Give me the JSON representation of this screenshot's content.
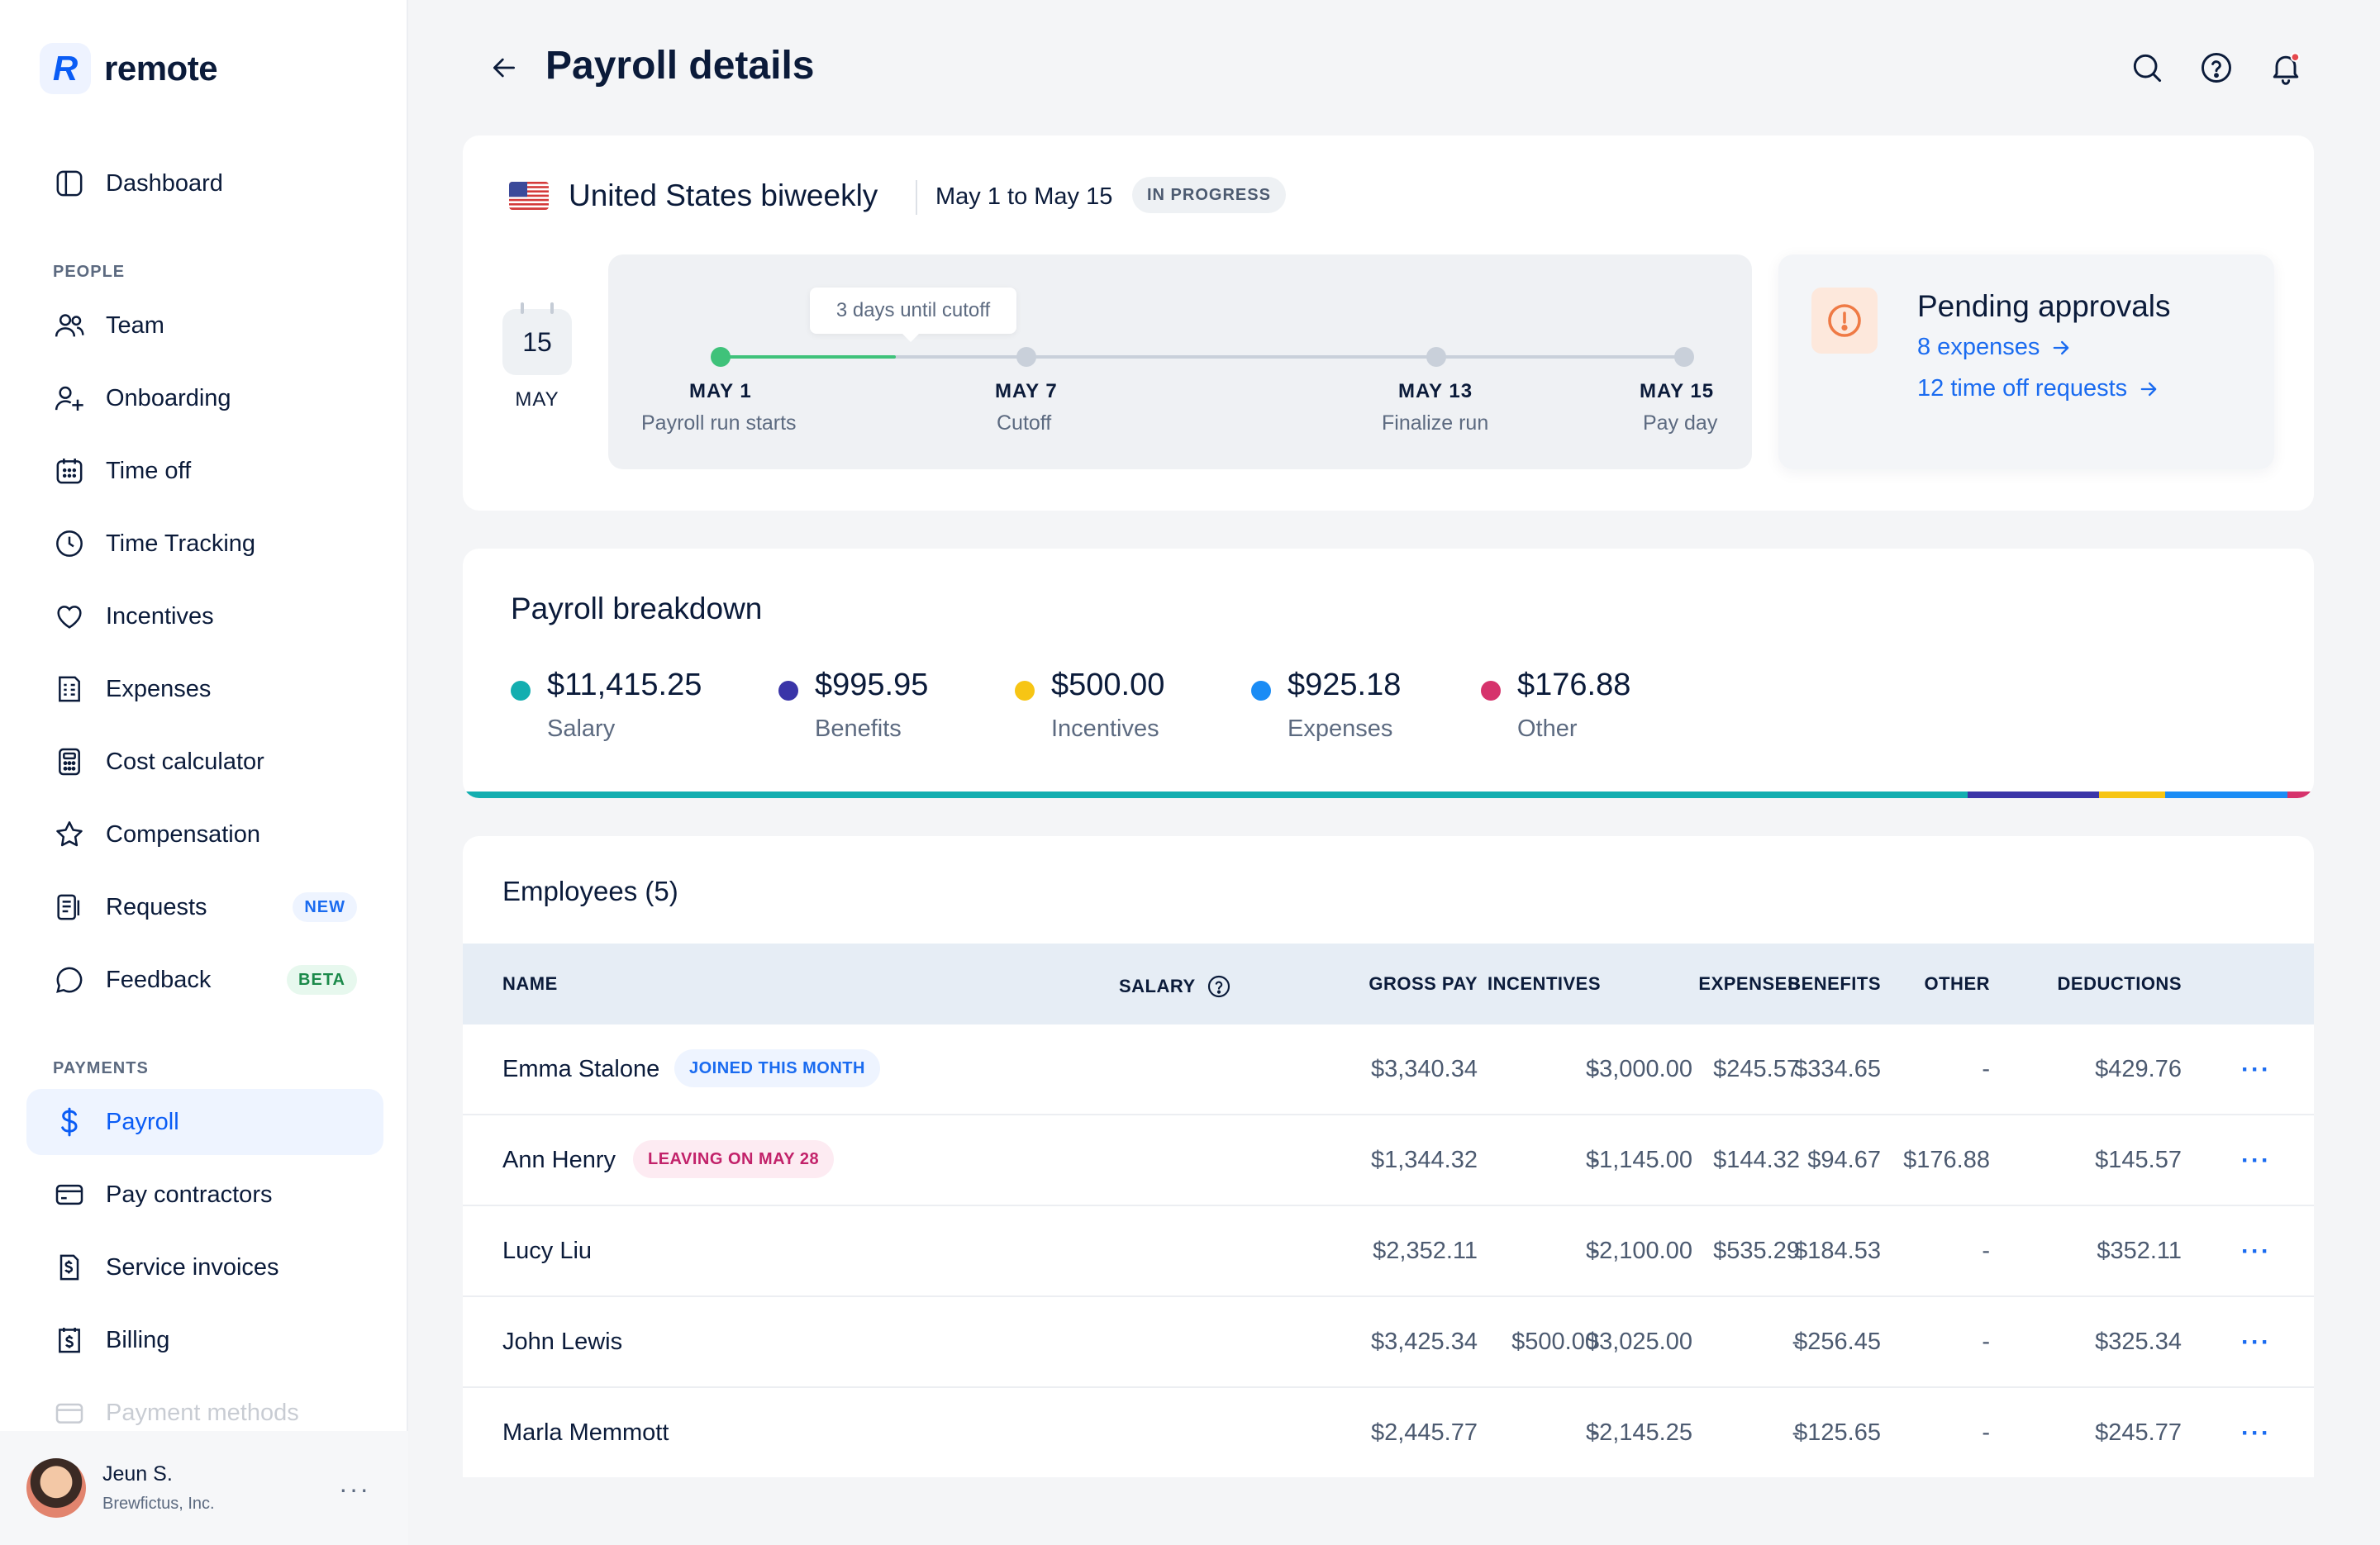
{
  "app": {
    "logo_text": "remote",
    "logo_letter": "R"
  },
  "sidebar": {
    "items": [
      {
        "label": "Dashboard",
        "icon": "dashboard-icon"
      },
      {
        "label": "Team",
        "icon": "team-icon"
      },
      {
        "label": "Onboarding",
        "icon": "onboarding-icon"
      },
      {
        "label": "Time off",
        "icon": "calendar-icon"
      },
      {
        "label": "Time Tracking",
        "icon": "clock-icon"
      },
      {
        "label": "Incentives",
        "icon": "heart-icon"
      },
      {
        "label": "Expenses",
        "icon": "receipt-icon"
      },
      {
        "label": "Cost calculator",
        "icon": "calculator-icon"
      },
      {
        "label": "Compensation",
        "icon": "star-icon"
      },
      {
        "label": "Requests",
        "icon": "requests-icon",
        "badge": "NEW"
      },
      {
        "label": "Feedback",
        "icon": "chat-icon",
        "badge": "BETA"
      },
      {
        "label": "Payroll",
        "icon": "dollar-icon"
      },
      {
        "label": "Pay contractors",
        "icon": "card-icon"
      },
      {
        "label": "Service invoices",
        "icon": "invoice-icon"
      },
      {
        "label": "Billing",
        "icon": "billing-icon"
      },
      {
        "label": "Payment methods",
        "icon": "payment-methods-icon"
      }
    ],
    "sections": {
      "people": "PEOPLE",
      "payments": "PAYMENTS"
    },
    "active_item": "Payroll",
    "user": {
      "name": "Jeun S.",
      "company": "Brewfictus, Inc.",
      "more": "···"
    }
  },
  "header": {
    "title": "Payroll details"
  },
  "schedule": {
    "title": "United States biweekly",
    "range": "May 1 to May 15",
    "status": "IN PROGRESS",
    "calendar_day": "15",
    "calendar_month": "MAY",
    "tooltip": "3 days until cutoff",
    "progress": 0.18,
    "milestones": [
      {
        "date": "MAY 1",
        "label": "Payroll run starts"
      },
      {
        "date": "MAY 7",
        "label": "Cutoff"
      },
      {
        "date": "MAY 13",
        "label": "Finalize run"
      },
      {
        "date": "MAY 15",
        "label": "Pay day"
      }
    ]
  },
  "pending": {
    "title": "Pending approvals",
    "links": [
      "8 expenses",
      "12 time off requests"
    ]
  },
  "breakdown": {
    "title": "Payroll breakdown",
    "items": [
      {
        "value": "$11,415.25",
        "label": "Salary",
        "amount": 11415.25,
        "color": "#13aeb0"
      },
      {
        "value": "$995.95",
        "label": "Benefits",
        "amount": 995.95,
        "color": "#3a35a8"
      },
      {
        "value": "$500.00",
        "label": "Incentives",
        "amount": 500.0,
        "color": "#f7c514"
      },
      {
        "value": "$925.18",
        "label": "Expenses",
        "amount": 925.18,
        "color": "#1a8cf5"
      },
      {
        "value": "$176.88",
        "label": "Other",
        "amount": 176.88,
        "color": "#d6336c"
      }
    ]
  },
  "employees": {
    "title": "Employees (5)",
    "columns": [
      "NAME",
      "GROSS PAY",
      "SALARY",
      "BENEFITS",
      "INCENTIVES",
      "EXPENSES",
      "OTHER",
      "DEDUCTIONS"
    ],
    "rows": [
      {
        "name": "Emma Stalone",
        "tag": "JOINED THIS MONTH",
        "tag_type": "joined",
        "gross": "$3,340.34",
        "salary": "$3,000.00",
        "benefits": "$334.65",
        "incentives": "-",
        "expenses": "$245.57",
        "other": "-",
        "deductions": "$429.76"
      },
      {
        "name": "Ann Henry",
        "tag": "LEAVING ON MAY 28",
        "tag_type": "leaving",
        "gross": "$1,344.32",
        "salary": "$1,145.00",
        "benefits": "$94.67",
        "incentives": "-",
        "expenses": "$144.32",
        "other": "$176.88",
        "deductions": "$145.57"
      },
      {
        "name": "Lucy Liu",
        "tag": "",
        "tag_type": "",
        "gross": "$2,352.11",
        "salary": "$2,100.00",
        "benefits": "$184.53",
        "incentives": "-",
        "expenses": "$535.29",
        "other": "-",
        "deductions": "$352.11"
      },
      {
        "name": "John Lewis",
        "tag": "",
        "tag_type": "",
        "gross": "$3,425.34",
        "salary": "$3,025.00",
        "benefits": "$256.45",
        "incentives": "$500.00",
        "expenses": "-",
        "other": "-",
        "deductions": "$325.34"
      },
      {
        "name": "Marla Memmott",
        "tag": "",
        "tag_type": "",
        "gross": "$2,445.77",
        "salary": "$2,145.25",
        "benefits": "$125.65",
        "incentives": "-",
        "expenses": "-",
        "other": "-",
        "deductions": "$245.77"
      }
    ],
    "row_action": "···"
  }
}
